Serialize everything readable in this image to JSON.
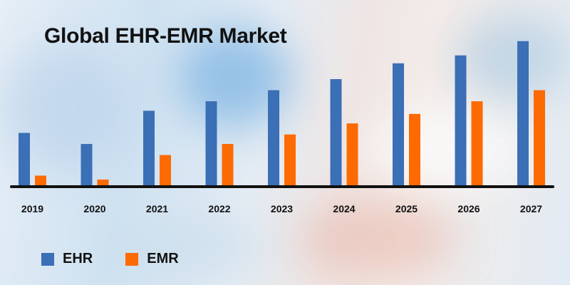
{
  "colors": {
    "ehr": "#3b6fb6",
    "emr": "#fd6a02",
    "axis": "#111111"
  },
  "chart_data": {
    "type": "bar",
    "title": "Global EHR-EMR Market",
    "categories": [
      "2019",
      "2020",
      "2021",
      "2022",
      "2023",
      "2024",
      "2025",
      "2026",
      "2027"
    ],
    "series": [
      {
        "name": "EHR",
        "values": [
          34,
          27,
          48,
          54,
          61,
          68,
          78,
          83,
          92
        ]
      },
      {
        "name": "EMR",
        "values": [
          7,
          4.5,
          20,
          27,
          33,
          40,
          46,
          54,
          61
        ]
      }
    ],
    "ylim": [
      0,
      100
    ],
    "grid": false,
    "legend": "bottom-left"
  }
}
